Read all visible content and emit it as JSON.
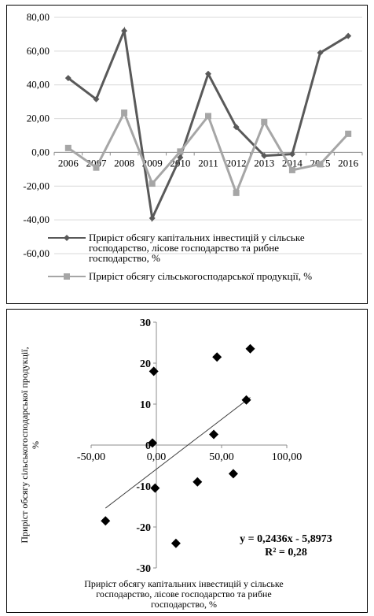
{
  "chart_data": [
    {
      "type": "line",
      "categories": [
        "2006",
        "2007",
        "2008",
        "2009",
        "2010",
        "2011",
        "2012",
        "2013",
        "2014",
        "2015",
        "2016"
      ],
      "y_ticks": [
        "80,00",
        "60,00",
        "40,00",
        "20,00",
        "0,00",
        "-20,00",
        "-40,00",
        "-60,00"
      ],
      "ylim": [
        -60,
        80
      ],
      "grid": true,
      "legend_position": "bottom",
      "series": [
        {
          "name": "Приріст обсягу капітальних інвестицій у сільське господарство, лісове господарство та рибне господарство, %",
          "legend_lines": [
            "Приріст обсягу капітальних інвестицій у сільське",
            "господарство, лісове господарство та рибне",
            "господарство, %"
          ],
          "color": "#595959",
          "marker": "diamond",
          "values": [
            44,
            31.5,
            72,
            -39,
            -3,
            46.5,
            15,
            -2,
            -1,
            59,
            69
          ]
        },
        {
          "name": "Приріст обсягу сільськогосподарської продукції, %",
          "legend_lines": [
            "Приріст обсягу сільськогосподарської продукції, %"
          ],
          "color": "#a6a6a6",
          "marker": "square",
          "values": [
            2.6,
            -9,
            23.5,
            -18.5,
            0.5,
            21.5,
            -24,
            18,
            -10.5,
            -7,
            11
          ]
        }
      ]
    },
    {
      "type": "scatter",
      "x_ticks": [
        "-50,00",
        "0,00",
        "50,00",
        "100,00"
      ],
      "y_ticks": [
        "30",
        "20",
        "10",
        "0",
        "-10",
        "-20",
        "-30"
      ],
      "xlim": [
        -50,
        100
      ],
      "ylim": [
        -30,
        30
      ],
      "xlabel_lines": [
        "Приріст обсягу капітальних інвестицій у сільське",
        "господарство, лісове господарство та рибне",
        "господарство, %"
      ],
      "ylabel_lines": [
        "Приріст обсягу сільськогосподарської продукції,",
        "%"
      ],
      "marker_color": "#000000",
      "points": [
        [
          44,
          2.6
        ],
        [
          31.5,
          -9
        ],
        [
          72,
          23.5
        ],
        [
          -39,
          -18.5
        ],
        [
          -3,
          0.5
        ],
        [
          46.5,
          21.5
        ],
        [
          15,
          -24
        ],
        [
          -2,
          18
        ],
        [
          -1,
          -10.5
        ],
        [
          59,
          -7
        ],
        [
          69,
          11
        ]
      ],
      "trendline": {
        "slope": 0.2436,
        "intercept": -5.8973,
        "x_range": [
          -39,
          72
        ]
      },
      "equation": "y = 0,2436x - 5,8973",
      "r2": "R² = 0,28"
    }
  ]
}
